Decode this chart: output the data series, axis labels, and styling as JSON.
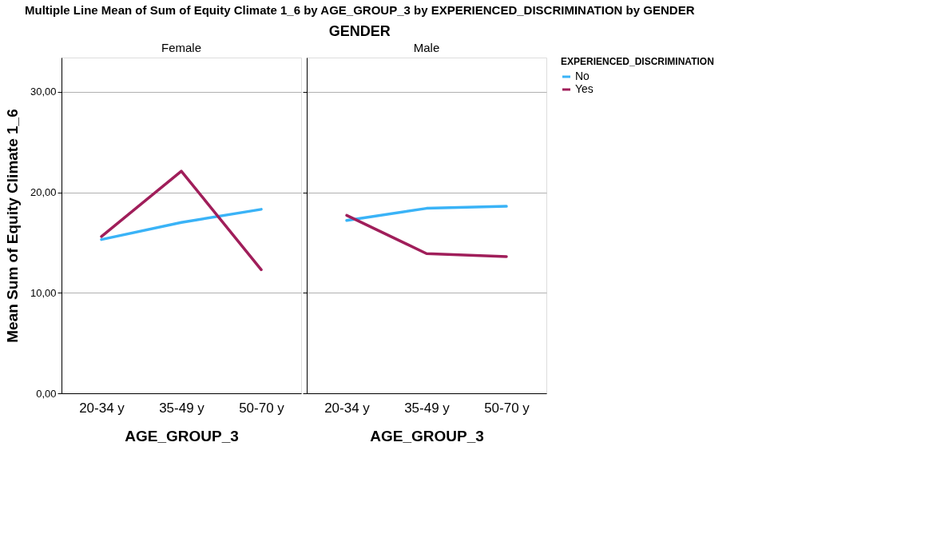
{
  "chart_data": [
    {
      "type": "line",
      "title": "Female",
      "xlabel": "AGE_GROUP_3",
      "ylabel": "Mean Sum of Equity Climate 1_6",
      "annotations": [
        "Multiple Line Mean of Sum of Equity Climate 1_6 by AGE_GROUP_3 by EXPERIENCED_DISCRIMINATION by GENDER",
        "GENDER"
      ],
      "categories": [
        "20-34 y",
        "35-49 y",
        "50-70 y"
      ],
      "ylim": [
        0,
        33.4
      ],
      "yticks": [
        {
          "value": 0,
          "label": "0,00"
        },
        {
          "value": 10,
          "label": "10,00"
        },
        {
          "value": 20,
          "label": "20,00"
        },
        {
          "value": 30,
          "label": "30,00"
        }
      ],
      "grid": "y",
      "legend": false,
      "series": [
        {
          "color": "#3ab3f7",
          "values": [
            15.3,
            17.0,
            18.3
          ]
        },
        {
          "color": "#a01e5a",
          "values": [
            15.6,
            22.1,
            12.3
          ]
        }
      ]
    },
    {
      "type": "line",
      "title": "Male",
      "xlabel": "AGE_GROUP_3",
      "legend_title": "EXPERIENCED_DISCRIMINATION",
      "categories": [
        "20-34 y",
        "35-49 y",
        "50-70 y"
      ],
      "ylim": [
        0,
        33.4
      ],
      "yticks": [
        0,
        10,
        20,
        30
      ],
      "grid": "y",
      "legend": "top right",
      "tick_labels": "x",
      "series": [
        {
          "name": "No",
          "color": "#3ab3f7",
          "values": [
            17.2,
            18.4,
            18.6
          ]
        },
        {
          "name": "Yes",
          "color": "#a01e5a",
          "values": [
            17.7,
            13.9,
            13.6
          ]
        }
      ]
    }
  ]
}
